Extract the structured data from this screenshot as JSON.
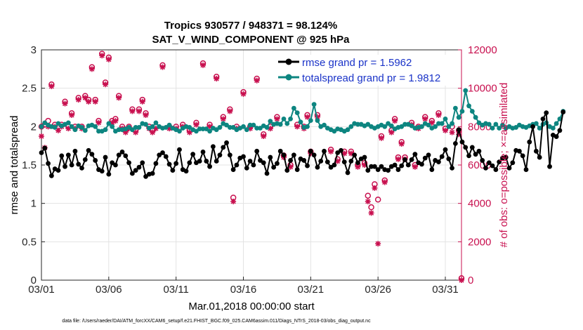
{
  "chart_data": {
    "type": "line",
    "title": "Tropics 930577 / 948371 = 98.124%",
    "subtitle": "SAT_V_WIND_COMPONENT @ 925 hPa",
    "xlabel": "Mar.01,2018 00:00:00 start",
    "ylabel": "rmse and totalspread",
    "ylabel_right": "# of obs: o=possible; ×=assimilated",
    "footnote": "data file: /Users/raeder/DAI/ATM_forcXX/CAM6_setup/f.e21.FHIST_BGC.f09_025.CAM6assim.011/Diags_NTrS_2018-03/obs_diag_output.nc",
    "xlim": [
      1,
      32.2
    ],
    "ylim": [
      0,
      3
    ],
    "ylim_right": [
      0,
      12000
    ],
    "xticks": [
      1,
      6,
      11,
      16,
      21,
      26,
      31
    ],
    "xtick_labels": [
      "03/01",
      "03/06",
      "03/11",
      "03/16",
      "03/21",
      "03/26",
      "03/31"
    ],
    "yticks": [
      0,
      0.5,
      1,
      1.5,
      2,
      2.5,
      3
    ],
    "ytick_labels": [
      "0",
      "0.5",
      "1",
      "1.5",
      "2",
      "2.5",
      "3"
    ],
    "yticks_right": [
      0,
      2000,
      4000,
      6000,
      8000,
      10000,
      12000
    ],
    "ytick_labels_right": [
      "0",
      "2000",
      "4000",
      "6000",
      "8000",
      "10000",
      "12000"
    ],
    "grid": true,
    "legend_position": "top-right",
    "series": [
      {
        "name": "rmse grand pr = 1.5962",
        "color": "#000000",
        "start": 1.0,
        "step": 0.25,
        "values": [
          1.66,
          1.72,
          1.52,
          1.36,
          1.45,
          1.43,
          1.62,
          1.48,
          1.63,
          1.5,
          1.68,
          1.51,
          1.46,
          1.57,
          1.69,
          1.64,
          1.56,
          1.44,
          1.42,
          1.6,
          1.38,
          1.53,
          1.5,
          1.63,
          1.67,
          1.62,
          1.53,
          1.39,
          1.43,
          1.47,
          1.53,
          1.35,
          1.38,
          1.39,
          1.52,
          1.63,
          1.66,
          1.61,
          1.51,
          1.43,
          1.52,
          1.7,
          1.44,
          1.42,
          1.53,
          1.64,
          1.53,
          1.55,
          1.67,
          1.55,
          1.48,
          1.74,
          1.55,
          1.63,
          1.73,
          1.79,
          1.63,
          1.44,
          1.5,
          1.59,
          1.61,
          1.46,
          1.55,
          1.5,
          1.68,
          1.56,
          1.53,
          1.39,
          1.6,
          1.47,
          1.52,
          1.68,
          1.63,
          1.43,
          1.56,
          1.63,
          1.44,
          1.58,
          1.56,
          1.49,
          1.68,
          1.63,
          1.47,
          1.55,
          1.68,
          1.54,
          1.47,
          1.5,
          1.66,
          1.69,
          1.54,
          1.4,
          1.55,
          1.63,
          1.53,
          1.58,
          1.6,
          1.43,
          1.48,
          1.48,
          1.44,
          1.48,
          1.44,
          1.43,
          1.48,
          1.5,
          1.44,
          1.49,
          1.57,
          1.5,
          1.57,
          1.64,
          1.53,
          1.51,
          1.59,
          1.63,
          1.44,
          1.56,
          1.54,
          1.61,
          1.7,
          1.58,
          1.46,
          1.78,
          1.96,
          1.8,
          1.73,
          1.62,
          1.73,
          1.64,
          1.68,
          1.56,
          1.46,
          1.53,
          1.49,
          1.44,
          1.54,
          1.59,
          1.6,
          1.46,
          1.53,
          1.69,
          1.68,
          1.62,
          1.44,
          1.8,
          2.0,
          1.68,
          1.6,
          2.1,
          2.18,
          1.48,
          1.89,
          1.87,
          1.95,
          2.19
        ]
      },
      {
        "name": "totalspread grand pr = 1.9812",
        "color": "#0d8580",
        "start": 1.0,
        "step": 0.25,
        "values": [
          2.0,
          2.05,
          2.02,
          2.0,
          1.99,
          2.04,
          2.01,
          2.03,
          2.05,
          2.0,
          1.96,
          2.01,
          1.99,
          1.95,
          2.01,
          2.02,
          2.0,
          1.94,
          1.94,
          1.96,
          2.04,
          2.0,
          1.94,
          1.96,
          1.96,
          1.97,
          1.99,
          1.96,
          1.99,
          1.99,
          2.04,
          2.03,
          1.98,
          2.0,
          2.05,
          2.0,
          1.98,
          1.99,
          2.02,
          1.98,
          1.96,
          1.94,
          1.98,
          2.0,
          1.99,
          1.96,
          1.94,
          1.97,
          1.97,
          1.97,
          1.94,
          1.98,
          1.96,
          1.99,
          2.04,
          2.02,
          1.99,
          1.99,
          1.96,
          1.98,
          2.0,
          1.96,
          2.02,
          2.02,
          1.98,
          1.98,
          2.01,
          1.99,
          2.07,
          2.03,
          2.04,
          2.03,
          2.1,
          2.04,
          2.1,
          2.24,
          2.18,
          2.06,
          1.99,
          2.0,
          2.08,
          2.29,
          2.08,
          2.0,
          2.02,
          1.98,
          1.96,
          1.94,
          1.97,
          1.96,
          1.94,
          1.96,
          2.0,
          2.04,
          2.03,
          2.03,
          2.01,
          2.03,
          2.0,
          1.98,
          2.0,
          2.02,
          2.0,
          2.04,
          2.01,
          1.97,
          1.99,
          2.0,
          2.03,
          2.03,
          2.01,
          1.98,
          1.99,
          2.0,
          2.04,
          2.02,
          1.98,
          2.0,
          2.04,
          2.04,
          2.1,
          2.0,
          2.04,
          2.24,
          2.12,
          2.2,
          2.47,
          2.27,
          2.2,
          2.12,
          2.05,
          2.02,
          2.04,
          2.03,
          1.98,
          2.03,
          1.98,
          2.02,
          1.98,
          2.0,
          1.98,
          1.99,
          2.02,
          2.0,
          1.99,
          2.01,
          2.03,
          2.04,
          1.98,
          2.03,
          2.05,
          2.0,
          1.98,
          2.04,
          2.1,
          2.2
        ]
      }
    ],
    "obs_possible": {
      "name": "o=possible",
      "color": "#c8104f",
      "points": [
        [
          1.0,
          8000
        ],
        [
          1.25,
          8100
        ],
        [
          1.5,
          8300
        ],
        [
          1.75,
          10200
        ],
        [
          2.0,
          8100
        ],
        [
          2.25,
          8000
        ],
        [
          2.5,
          8100
        ],
        [
          2.75,
          9300
        ],
        [
          3.0,
          8000
        ],
        [
          3.25,
          8700
        ],
        [
          3.5,
          8000
        ],
        [
          3.75,
          9500
        ],
        [
          4.0,
          8000
        ],
        [
          4.25,
          9600
        ],
        [
          4.5,
          9400
        ],
        [
          4.75,
          11100
        ],
        [
          5.0,
          9400
        ],
        [
          5.25,
          8300
        ],
        [
          5.5,
          11800
        ],
        [
          5.75,
          10300
        ],
        [
          6.0,
          11600
        ],
        [
          6.25,
          8300
        ],
        [
          6.5,
          8400
        ],
        [
          6.75,
          9600
        ],
        [
          7.0,
          8000
        ],
        [
          7.25,
          7800
        ],
        [
          7.5,
          8000
        ],
        [
          7.75,
          8900
        ],
        [
          8.0,
          7800
        ],
        [
          8.25,
          8900
        ],
        [
          8.5,
          9400
        ],
        [
          8.75,
          8700
        ],
        [
          9.0,
          8000
        ],
        [
          9.25,
          7800
        ],
        [
          9.5,
          8000
        ],
        [
          10.0,
          11200
        ],
        [
          10.5,
          8000
        ],
        [
          11.0,
          8000
        ],
        [
          11.5,
          8100
        ],
        [
          12.0,
          7800
        ],
        [
          12.5,
          8200
        ],
        [
          13.0,
          11300
        ],
        [
          13.5,
          8100
        ],
        [
          14.0,
          10600
        ],
        [
          14.5,
          8500
        ],
        [
          15.0,
          8900
        ],
        [
          15.25,
          4300
        ],
        [
          15.5,
          8000
        ],
        [
          16.0,
          9800
        ],
        [
          16.5,
          8000
        ],
        [
          17.0,
          10500
        ],
        [
          17.5,
          7600
        ],
        [
          18.0,
          8000
        ],
        [
          18.5,
          8500
        ],
        [
          19.0,
          6500
        ],
        [
          19.5,
          6000
        ],
        [
          20.0,
          8100
        ],
        [
          20.5,
          8000
        ],
        [
          20.75,
          8600
        ],
        [
          21.0,
          6700
        ],
        [
          21.5,
          8600
        ],
        [
          22.0,
          10700
        ],
        [
          22.5,
          6800
        ],
        [
          23.0,
          6300
        ],
        [
          23.5,
          6700
        ],
        [
          24.0,
          6700
        ],
        [
          24.5,
          6000
        ],
        [
          25.0,
          6100
        ],
        [
          25.25,
          4400
        ],
        [
          25.5,
          3800
        ],
        [
          25.75,
          5000
        ],
        [
          26.0,
          4200
        ],
        [
          26.25,
          7500
        ],
        [
          26.5,
          5200
        ],
        [
          27.0,
          7800
        ],
        [
          27.25,
          8400
        ],
        [
          27.5,
          6400
        ],
        [
          27.75,
          7200
        ],
        [
          28.0,
          6400
        ],
        [
          28.5,
          8200
        ],
        [
          28.75,
          6000
        ],
        [
          29.0,
          8000
        ],
        [
          29.5,
          8500
        ],
        [
          30.0,
          8300
        ],
        [
          30.5,
          8700
        ],
        [
          31.0,
          7900
        ],
        [
          31.5,
          8000
        ],
        [
          32.0,
          7800
        ],
        [
          32.2,
          100
        ]
      ]
    },
    "obs_assimilated": {
      "name": "×=assimilated",
      "color": "#c8104f",
      "points": [
        [
          1.0,
          7500
        ],
        [
          1.25,
          6900
        ],
        [
          1.5,
          8000
        ],
        [
          1.75,
          10100
        ],
        [
          2.0,
          8000
        ],
        [
          2.25,
          7800
        ],
        [
          2.5,
          8000
        ],
        [
          2.75,
          9200
        ],
        [
          3.0,
          7900
        ],
        [
          3.25,
          8600
        ],
        [
          3.5,
          7900
        ],
        [
          3.75,
          9400
        ],
        [
          4.0,
          7900
        ],
        [
          4.25,
          9500
        ],
        [
          4.5,
          9300
        ],
        [
          4.75,
          11000
        ],
        [
          5.0,
          9300
        ],
        [
          5.25,
          8200
        ],
        [
          5.5,
          11700
        ],
        [
          5.75,
          10200
        ],
        [
          6.0,
          11500
        ],
        [
          6.25,
          8200
        ],
        [
          6.5,
          8300
        ],
        [
          6.75,
          9500
        ],
        [
          7.0,
          7900
        ],
        [
          7.25,
          7700
        ],
        [
          7.5,
          7900
        ],
        [
          7.75,
          8800
        ],
        [
          8.0,
          7700
        ],
        [
          8.25,
          8800
        ],
        [
          8.5,
          9300
        ],
        [
          8.75,
          8600
        ],
        [
          9.0,
          7900
        ],
        [
          9.25,
          7700
        ],
        [
          9.5,
          7900
        ],
        [
          10.0,
          11100
        ],
        [
          10.5,
          7900
        ],
        [
          11.0,
          7900
        ],
        [
          11.5,
          8000
        ],
        [
          12.0,
          7700
        ],
        [
          12.5,
          8100
        ],
        [
          13.0,
          11200
        ],
        [
          13.5,
          8000
        ],
        [
          14.0,
          10500
        ],
        [
          14.5,
          8400
        ],
        [
          15.0,
          8800
        ],
        [
          15.25,
          4100
        ],
        [
          15.5,
          7900
        ],
        [
          16.0,
          9700
        ],
        [
          16.5,
          7900
        ],
        [
          17.0,
          10400
        ],
        [
          17.5,
          7500
        ],
        [
          18.0,
          7900
        ],
        [
          18.5,
          8400
        ],
        [
          19.0,
          6400
        ],
        [
          19.5,
          5900
        ],
        [
          20.0,
          8000
        ],
        [
          20.5,
          7900
        ],
        [
          20.75,
          8500
        ],
        [
          21.0,
          6600
        ],
        [
          21.5,
          8500
        ],
        [
          22.0,
          10600
        ],
        [
          22.5,
          6700
        ],
        [
          23.0,
          6200
        ],
        [
          23.5,
          6600
        ],
        [
          24.0,
          6600
        ],
        [
          24.5,
          5900
        ],
        [
          25.0,
          6000
        ],
        [
          25.25,
          4100
        ],
        [
          25.5,
          3500
        ],
        [
          25.75,
          4800
        ],
        [
          26.0,
          1900
        ],
        [
          26.25,
          7400
        ],
        [
          26.5,
          5100
        ],
        [
          27.0,
          7700
        ],
        [
          27.25,
          8300
        ],
        [
          27.5,
          6300
        ],
        [
          27.75,
          7100
        ],
        [
          28.0,
          6300
        ],
        [
          28.5,
          8100
        ],
        [
          28.75,
          5900
        ],
        [
          29.0,
          7900
        ],
        [
          29.5,
          8400
        ],
        [
          30.0,
          8200
        ],
        [
          30.5,
          8600
        ],
        [
          31.0,
          7800
        ],
        [
          31.5,
          7700
        ],
        [
          32.0,
          7600
        ],
        [
          32.2,
          0
        ]
      ]
    }
  }
}
